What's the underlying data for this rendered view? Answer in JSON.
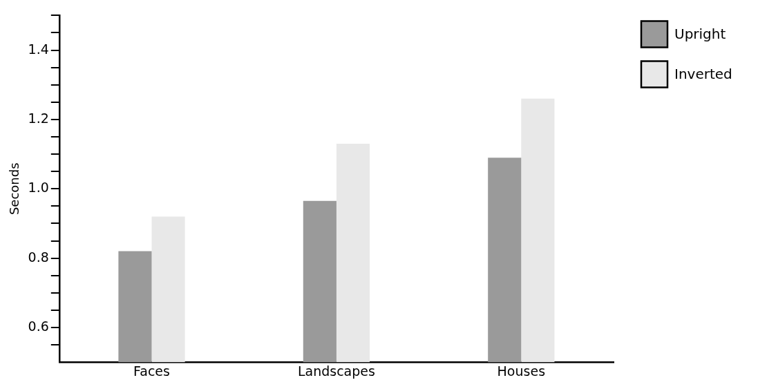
{
  "chart_data": {
    "type": "bar",
    "ylabel": "Seconds",
    "categories": [
      "Faces",
      "Landscapes",
      "Houses"
    ],
    "series": [
      {
        "name": "Upright",
        "color": "#9a9a9a",
        "values": [
          0.82,
          0.965,
          1.09
        ]
      },
      {
        "name": "Inverted",
        "color": "#e8e8e8",
        "values": [
          0.92,
          1.13,
          1.26
        ]
      }
    ],
    "ylim": [
      0.5,
      1.5
    ],
    "yticks": [
      {
        "value": 0.55,
        "label": null
      },
      0.6,
      {
        "value": 0.65,
        "label": null
      },
      {
        "value": 0.7,
        "label": null
      },
      {
        "value": 0.75,
        "label": null
      },
      0.8,
      {
        "value": 0.85,
        "label": null
      },
      {
        "value": 0.9,
        "label": null
      },
      {
        "value": 0.95,
        "label": null
      },
      {
        "value": 1.0,
        "label": "1.0"
      },
      {
        "value": 1.05,
        "label": null
      },
      {
        "value": 1.1,
        "label": null
      },
      {
        "value": 1.15,
        "label": null
      },
      1.2,
      {
        "value": 1.25,
        "label": null
      },
      {
        "value": 1.3,
        "label": null
      },
      {
        "value": 1.35,
        "label": null
      },
      1.4,
      {
        "value": 1.45,
        "label": null
      },
      {
        "value": 1.5,
        "label": null
      }
    ],
    "legend": "top right"
  }
}
